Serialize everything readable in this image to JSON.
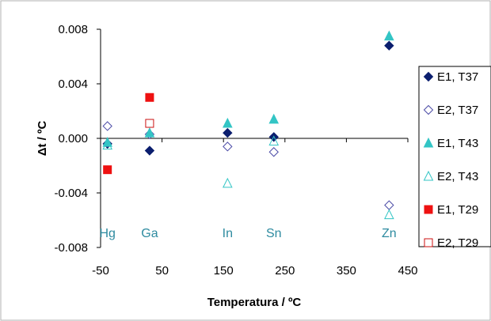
{
  "chart_data": {
    "type": "scatter",
    "xlabel": "Temperatura / ºC",
    "ylabel": "Δt / ºC",
    "xlim": [
      -50,
      450
    ],
    "ylim": [
      -0.008,
      0.008
    ],
    "xticks": [
      "-50",
      "50",
      "150",
      "250",
      "350",
      "450"
    ],
    "xtick_values": [
      -50,
      50,
      150,
      250,
      350,
      450
    ],
    "yticks": [
      "0.008",
      "0.004",
      "0.000",
      "-0.004",
      "-0.008"
    ],
    "ytick_values": [
      0.008,
      0.004,
      0.0,
      -0.004,
      -0.008
    ],
    "grid": false,
    "legend_position": "right",
    "annotations": [
      {
        "text": "Hg",
        "x": -38.8,
        "y": -0.0069
      },
      {
        "text": "Ga",
        "x": 29.8,
        "y": -0.0069
      },
      {
        "text": "In",
        "x": 156.6,
        "y": -0.0069
      },
      {
        "text": "Sn",
        "x": 231.9,
        "y": -0.0069
      },
      {
        "text": "Zn",
        "x": 419.5,
        "y": -0.0069
      }
    ],
    "series": [
      {
        "name": "E1, T37",
        "marker": "diamond-filled",
        "color": "#0B1E6E",
        "x": [
          -38.8,
          29.8,
          156.6,
          231.9,
          419.5
        ],
        "y": [
          -0.0004,
          -0.0009,
          0.0004,
          0.0001,
          0.0068
        ]
      },
      {
        "name": "E2, T37",
        "marker": "diamond-open",
        "color": "#4B4BA6",
        "x": [
          -38.8,
          29.8,
          156.6,
          231.9,
          419.5
        ],
        "y": [
          0.0009,
          0.0003,
          -0.0006,
          -0.001,
          -0.0049
        ]
      },
      {
        "name": "E1, T43",
        "marker": "triangle-filled",
        "color": "#33C5C5",
        "x": [
          -38.8,
          29.8,
          156.6,
          231.9,
          419.5
        ],
        "y": [
          -0.0003,
          0.0004,
          0.0011,
          0.0014,
          0.0075
        ]
      },
      {
        "name": "E2, T43",
        "marker": "triangle-open",
        "color": "#33C5C5",
        "x": [
          -38.8,
          156.6,
          231.9,
          419.5
        ],
        "y": [
          -0.0005,
          -0.0033,
          -0.0002,
          -0.0056
        ]
      },
      {
        "name": "E1, T29",
        "marker": "square-filled",
        "color": "#EE1111",
        "x": [
          -38.8,
          29.8
        ],
        "y": [
          -0.0023,
          0.003
        ]
      },
      {
        "name": "E2, T29",
        "marker": "square-open",
        "color": "#CC1111",
        "x": [
          29.8
        ],
        "y": [
          0.0011
        ]
      }
    ]
  }
}
